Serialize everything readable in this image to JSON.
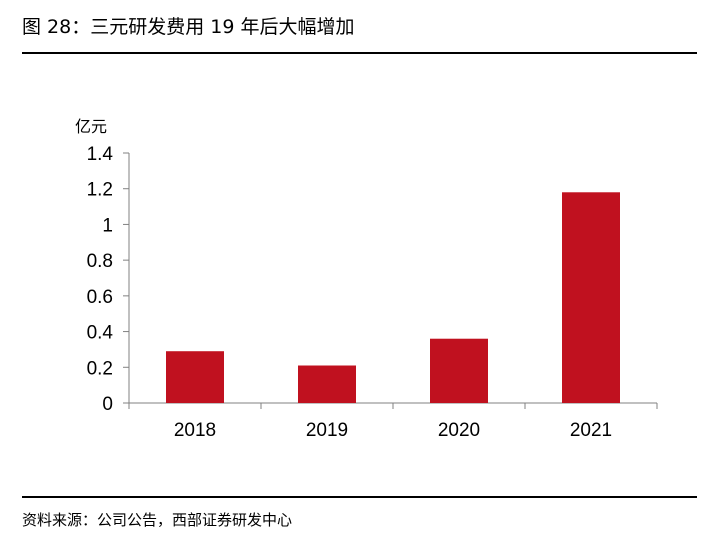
{
  "figure": {
    "title": "图 28：三元研发费用 19 年后大幅增加",
    "source": "资料来源：公司公告，西部证券研发中心"
  },
  "chart_data": {
    "type": "bar",
    "categories": [
      "2018",
      "2019",
      "2020",
      "2021"
    ],
    "values": [
      0.29,
      0.21,
      0.36,
      1.18
    ],
    "ylabel": "亿元",
    "ylim": [
      0,
      1.4
    ],
    "yticks": [
      "0",
      "0.2",
      "0.4",
      "0.6",
      "0.8",
      "1",
      "1.2",
      "1.4"
    ],
    "grid": false,
    "bar_color": "#C0111F"
  }
}
